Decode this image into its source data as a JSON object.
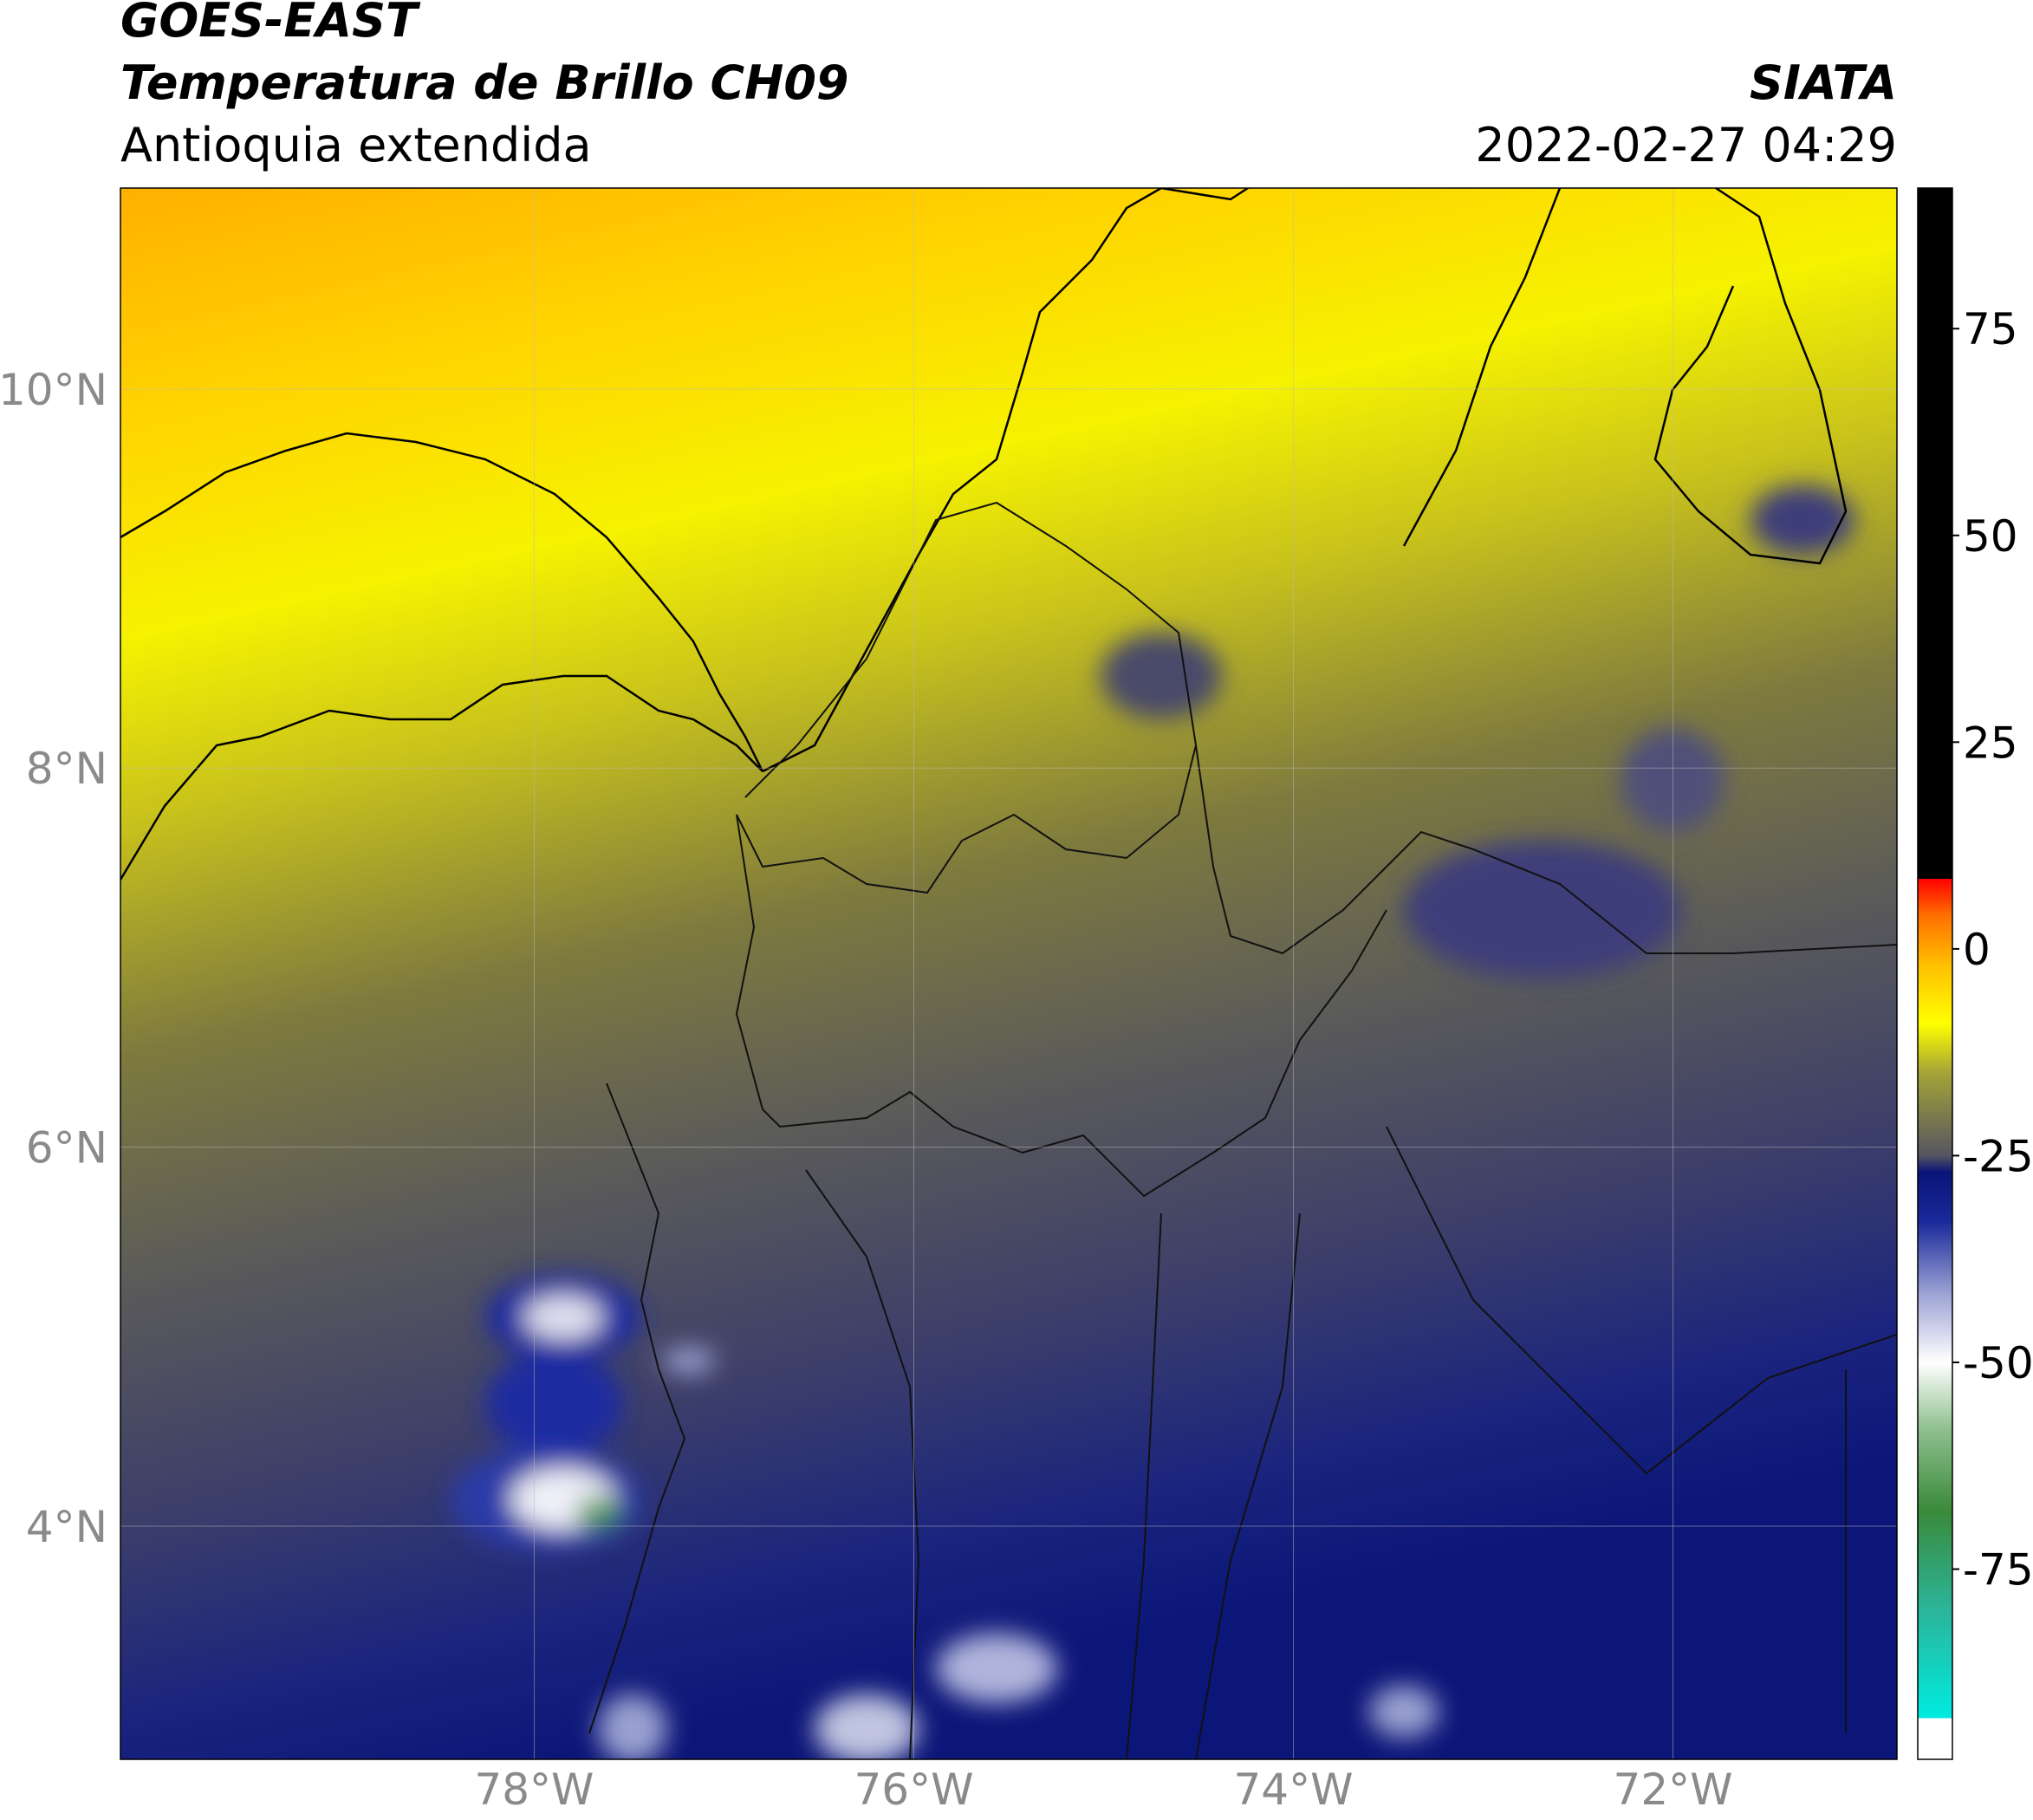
{
  "header": {
    "title": "GOES-EAST",
    "subtitle": "Temperatura de Brillo CH09",
    "region": "Antioquia extendida",
    "source": "SIATA",
    "datetime": "2022-02-27 04:29"
  },
  "map": {
    "xlim": [
      -80.18,
      -70.82
    ],
    "ylim": [
      2.77,
      11.06
    ],
    "xticks": [
      {
        "value": -78,
        "label": "78°W"
      },
      {
        "value": -76,
        "label": "76°W"
      },
      {
        "value": -74,
        "label": "74°W"
      },
      {
        "value": -72,
        "label": "72°W"
      }
    ],
    "yticks": [
      {
        "value": 4,
        "label": "4°N"
      },
      {
        "value": 6,
        "label": "6°N"
      },
      {
        "value": 8,
        "label": "8°N"
      },
      {
        "value": 10,
        "label": "10°N"
      }
    ],
    "grid": true
  },
  "colorbar": {
    "lim": [
      -98,
      92
    ],
    "ticks": [
      -75,
      -50,
      -25,
      0,
      25,
      50,
      75
    ],
    "stops": [
      {
        "value": -98,
        "color": "#ffffff"
      },
      {
        "value": -93,
        "color": "#ffffff"
      },
      {
        "value": -93,
        "color": "#00ebe0"
      },
      {
        "value": -80,
        "color": "#2bb59a"
      },
      {
        "value": -68,
        "color": "#3a8a3a"
      },
      {
        "value": -58,
        "color": "#8fc08f"
      },
      {
        "value": -50,
        "color": "#ffffff"
      },
      {
        "value": -42,
        "color": "#a0a6d6"
      },
      {
        "value": -33,
        "color": "#1a2a9a"
      },
      {
        "value": -27,
        "color": "#0a1478"
      },
      {
        "value": -25,
        "color": "#555560"
      },
      {
        "value": -15,
        "color": "#a4a438"
      },
      {
        "value": -9,
        "color": "#ffff00"
      },
      {
        "value": -2,
        "color": "#ffc000"
      },
      {
        "value": 4,
        "color": "#ff7000"
      },
      {
        "value": 8.5,
        "color": "#ff0000"
      },
      {
        "value": 8.5,
        "color": "#000000"
      },
      {
        "value": 92,
        "color": "#000000"
      }
    ]
  }
}
